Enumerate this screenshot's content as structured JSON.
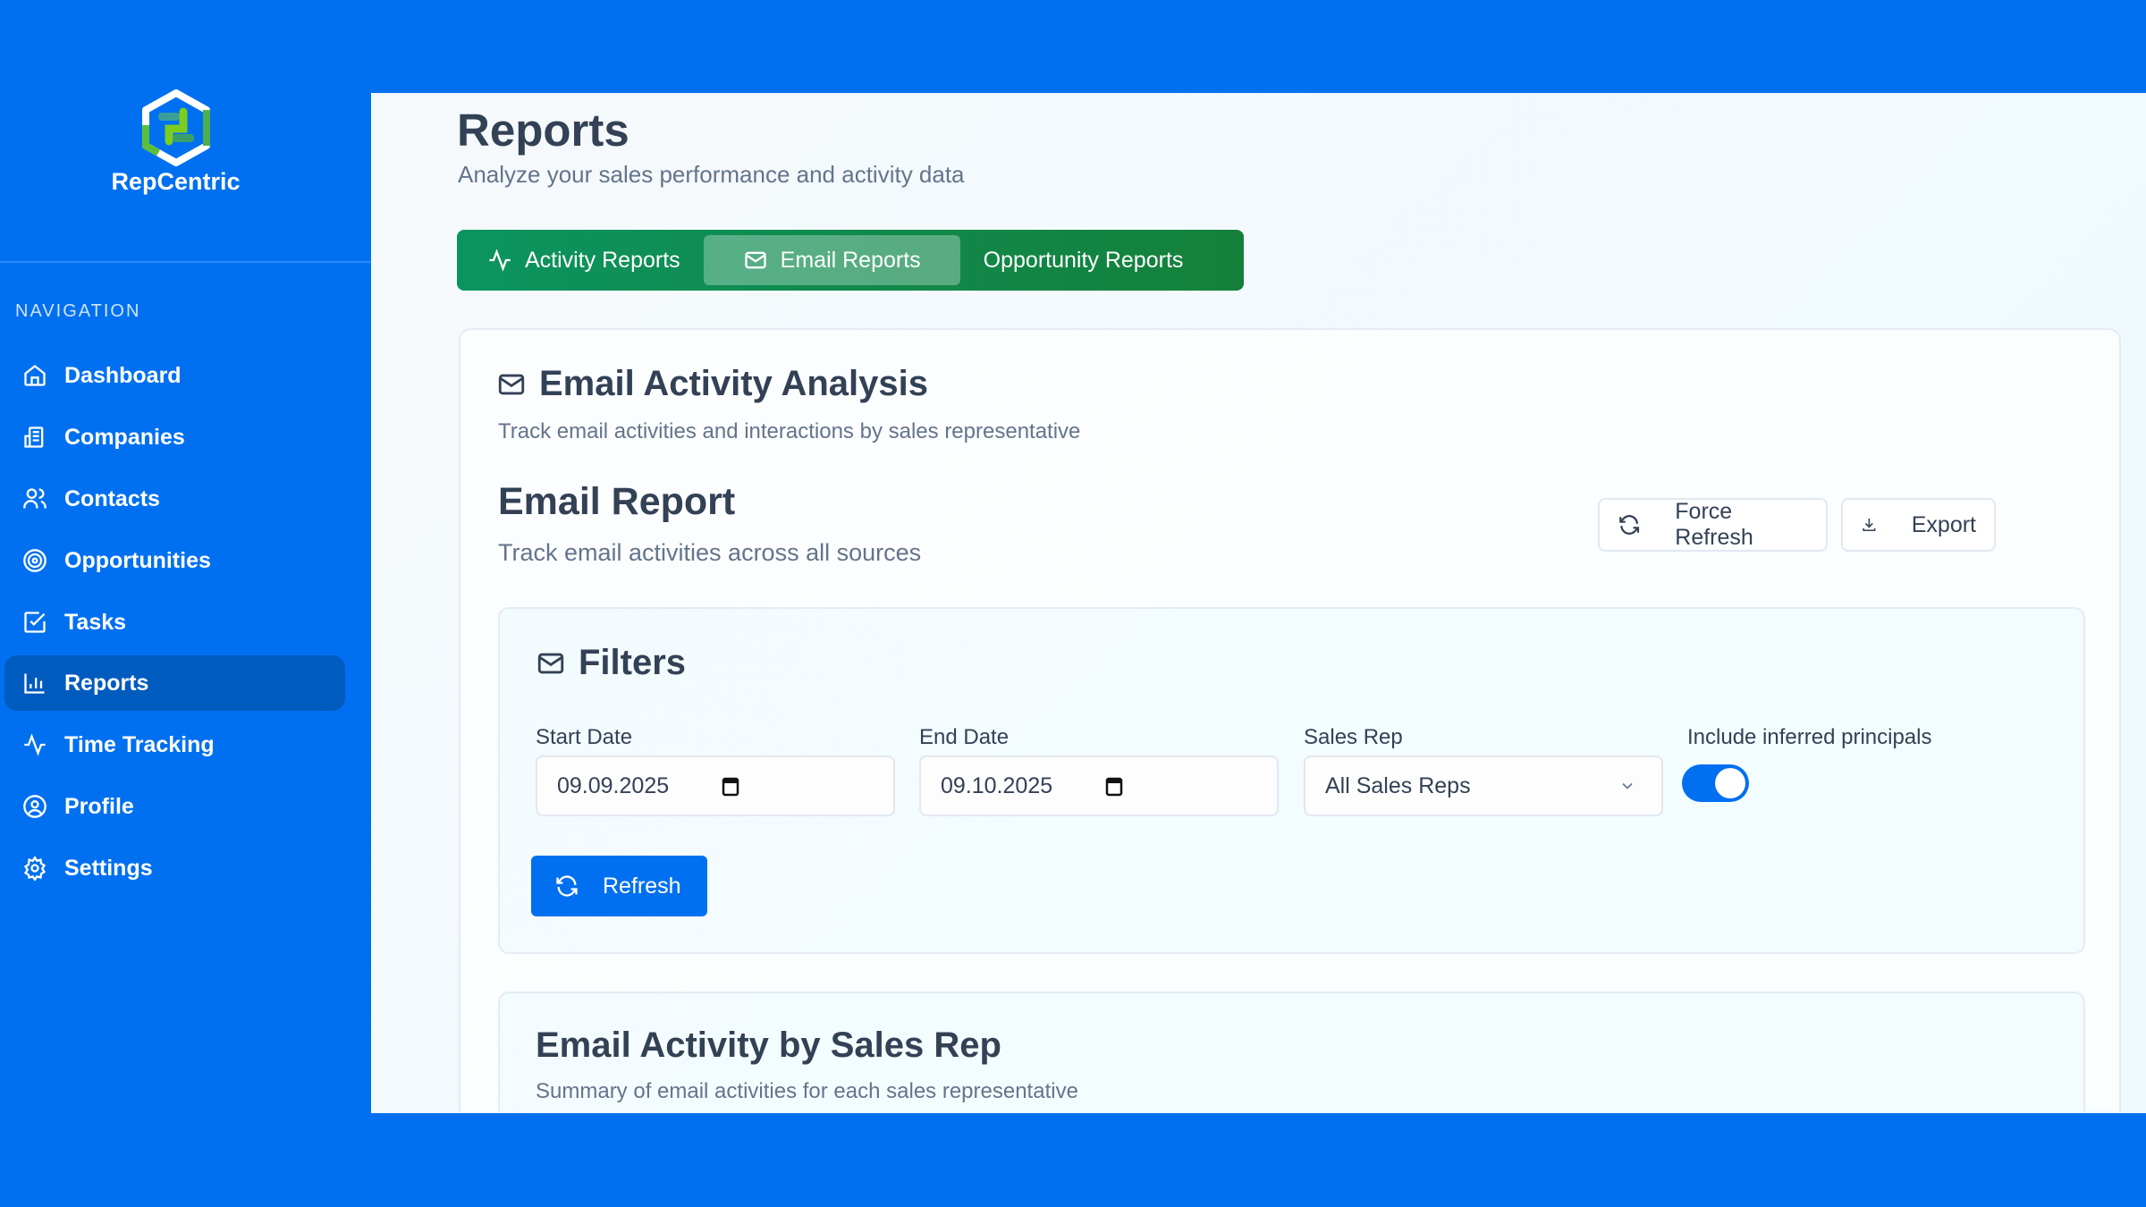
{
  "brand": {
    "name": "RepCentric"
  },
  "sidebar": {
    "heading": "NAVIGATION",
    "items": [
      {
        "label": "Dashboard",
        "icon": "home-icon"
      },
      {
        "label": "Companies",
        "icon": "building-icon"
      },
      {
        "label": "Contacts",
        "icon": "users-icon"
      },
      {
        "label": "Opportunities",
        "icon": "target-icon"
      },
      {
        "label": "Tasks",
        "icon": "checkbox-icon"
      },
      {
        "label": "Reports",
        "icon": "bar-chart-icon",
        "active": true
      },
      {
        "label": "Time Tracking",
        "icon": "activity-icon"
      },
      {
        "label": "Profile",
        "icon": "user-circle-icon"
      },
      {
        "label": "Settings",
        "icon": "gear-icon"
      }
    ]
  },
  "header": {
    "title": "Reports",
    "subtitle": "Analyze your sales performance and activity data"
  },
  "tabs": [
    {
      "label": "Activity Reports",
      "active": false
    },
    {
      "label": "Email Reports",
      "active": true
    },
    {
      "label": "Opportunity Reports",
      "active": false
    }
  ],
  "analysis": {
    "title": "Email Activity Analysis",
    "subtitle": "Track email activities and interactions by sales representative"
  },
  "report": {
    "title": "Email Report",
    "subtitle": "Track email activities across all sources",
    "force_refresh": "Force Refresh",
    "export": "Export"
  },
  "filters": {
    "title": "Filters",
    "start_label": "Start Date",
    "start_value": "09.09.2025",
    "end_label": "End Date",
    "end_value": "09.10.2025",
    "rep_label": "Sales Rep",
    "rep_value": "All Sales Reps",
    "inferred_label": "Include inferred principals",
    "inferred_on": true,
    "refresh": "Refresh"
  },
  "by_rep": {
    "title": "Email Activity by Sales Rep",
    "subtitle": "Summary of email activities for each sales representative"
  },
  "colors": {
    "primary": "#0070f0",
    "tab_green": "#0c9460",
    "sidebar_active": "#005bbf"
  }
}
